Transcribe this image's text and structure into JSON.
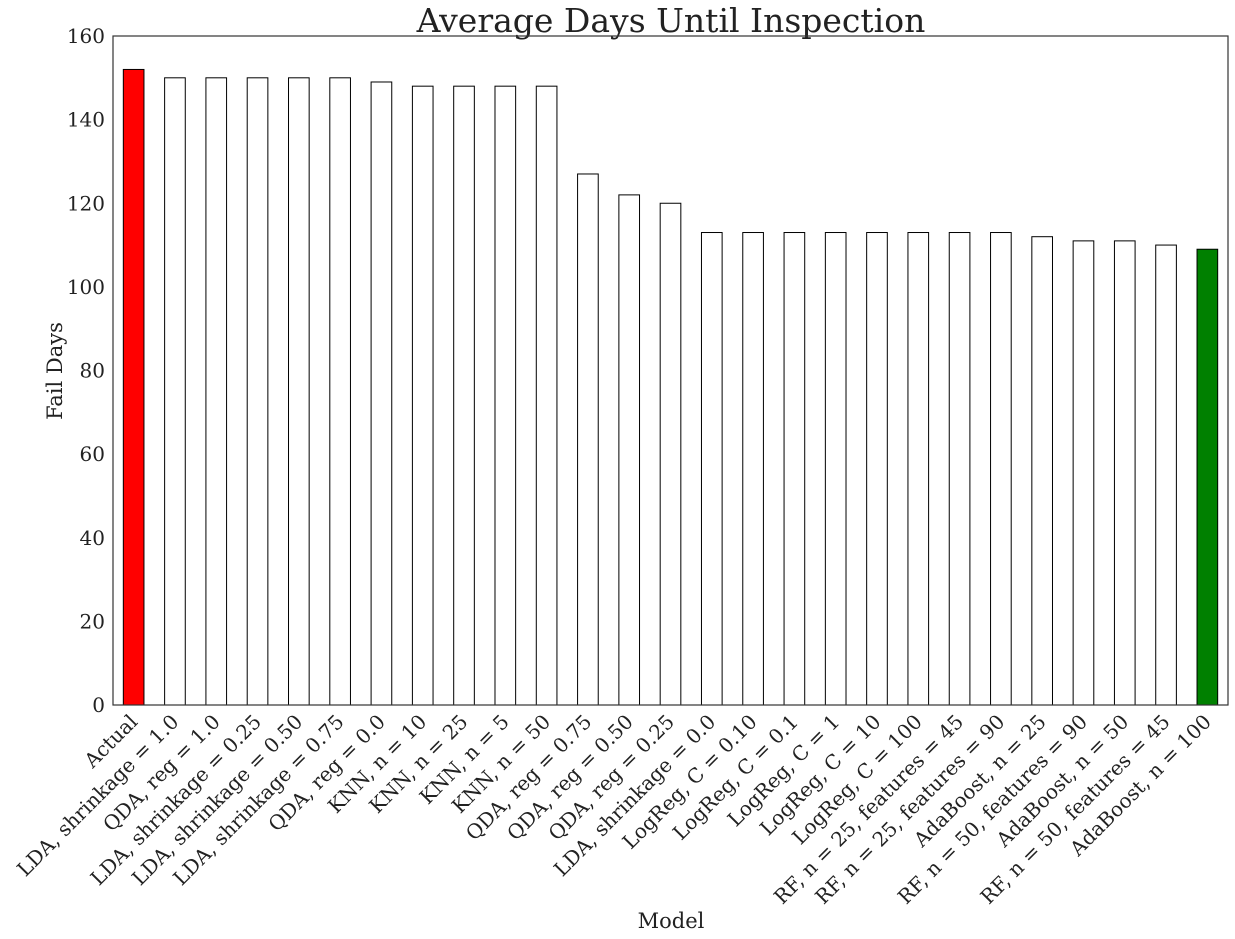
{
  "chart_data": {
    "type": "bar",
    "title": "Average Days Until Inspection",
    "xlabel": "Model",
    "ylabel": "Fail Days",
    "ylim": [
      0,
      160
    ],
    "yticks": [
      0,
      20,
      40,
      60,
      80,
      100,
      120,
      140,
      160
    ],
    "grid": false,
    "legend": "none",
    "categories": [
      "Actual",
      "LDA, shrinkage = 1.0",
      "QDA, reg = 1.0",
      "LDA, shrinkage = 0.25",
      "LDA, shrinkage = 0.50",
      "LDA, shrinkage = 0.75",
      "QDA, reg = 0.0",
      "KNN, n = 10",
      "KNN, n = 25",
      "KNN, n = 5",
      "KNN, n = 50",
      "QDA, reg = 0.75",
      "QDA, reg = 0.50",
      "QDA, reg = 0.25",
      "LDA, shrinkage = 0.0",
      "LogReg, C = 0.10",
      "LogReg, C = 0.1",
      "LogReg, C = 1",
      "LogReg, C = 10",
      "LogReg, C = 100",
      "RF, n = 25, features = 45",
      "RF, n = 25, features = 90",
      "AdaBoost, n = 25",
      "RF, n = 50, features = 90",
      "AdaBoost, n = 50",
      "RF, n = 50, features = 45",
      "AdaBoost, n = 100"
    ],
    "values": [
      152,
      150,
      150,
      150,
      150,
      150,
      149,
      148,
      148,
      148,
      148,
      127,
      122,
      120,
      113,
      113,
      113,
      113,
      113,
      113,
      113,
      113,
      112,
      111,
      111,
      110,
      109
    ],
    "colors": {
      "default": "#ffffff",
      "highlight_first": "#ff0000",
      "highlight_last": "#008000",
      "stroke": "#000000"
    }
  }
}
